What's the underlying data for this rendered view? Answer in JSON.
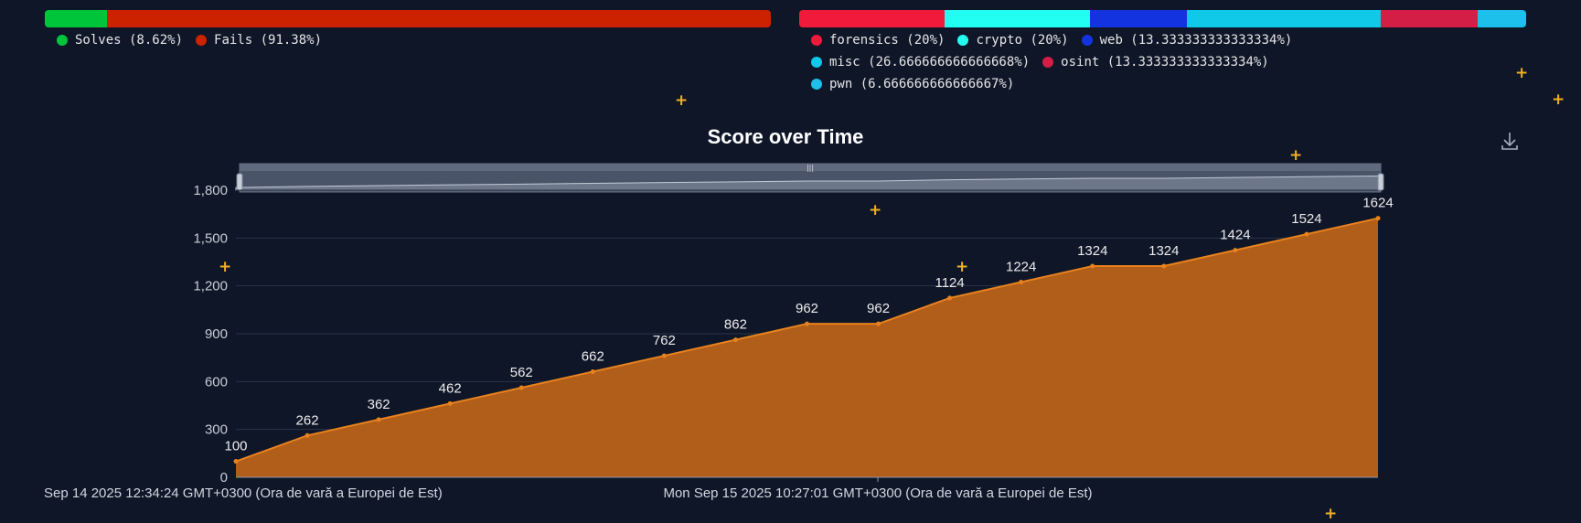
{
  "solves_fails": {
    "segments": [
      {
        "label": "Solves (8.62%)",
        "pct": 8.62,
        "color": "#00c43a"
      },
      {
        "label": "Fails (91.38%)",
        "pct": 91.38,
        "color": "#cc2200"
      }
    ]
  },
  "categories_bar": {
    "segments": [
      {
        "label": "forensics (20%)",
        "pct": 20,
        "color": "#f21a3a"
      },
      {
        "label": "crypto (20%)",
        "pct": 20,
        "color": "#22fff2"
      },
      {
        "label": "web (13.333333333333334%)",
        "pct": 13.333333333333334,
        "color": "#1433e0"
      },
      {
        "label": "misc (26.666666666666668%)",
        "pct": 26.666666666666668,
        "color": "#10c8e8"
      },
      {
        "label": "osint (13.333333333333334%)",
        "pct": 13.333333333333334,
        "color": "#d41e46"
      },
      {
        "label": "pwn (6.666666666666667%)",
        "pct": 6.666666666666667,
        "color": "#1cc0ea"
      }
    ]
  },
  "chart_data": {
    "type": "area",
    "title": "Score over Time",
    "xlabel": "",
    "ylabel": "",
    "x_tick_labels": [
      "Sep 14 2025 12:34:24 GMT+0300 (Ora de vară a Europei de Est)",
      "Mon Sep 15 2025 10:27:01 GMT+0300 (Ora de vară a Europei de Est)"
    ],
    "y_ticks": [
      0,
      300,
      600,
      900,
      1200,
      1500,
      1800
    ],
    "y_tick_labels": [
      "0",
      "300",
      "600",
      "900",
      "1,200",
      "1,500",
      "1,800"
    ],
    "ylim": [
      0,
      1800
    ],
    "values": [
      100,
      262,
      362,
      462,
      562,
      662,
      762,
      862,
      962,
      962,
      1124,
      1224,
      1324,
      1324,
      1424,
      1524,
      1624
    ],
    "grid": true,
    "legend": "none",
    "colors": {
      "line": "#e8821e",
      "fill": "#b05e1a",
      "grid": "#2b3547",
      "axis": "#9aa3b2"
    }
  }
}
